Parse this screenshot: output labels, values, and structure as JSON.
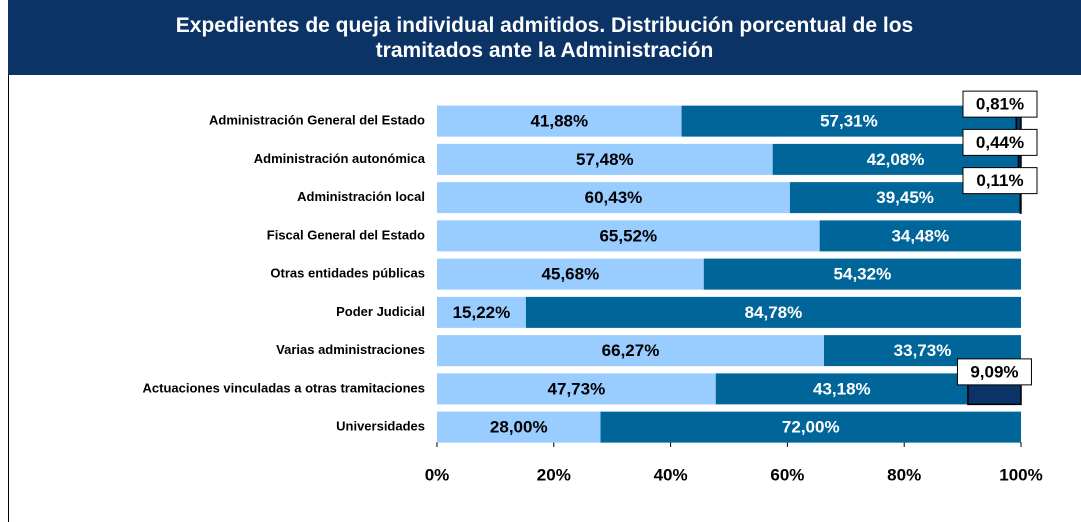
{
  "chart_data": {
    "type": "stacked-barh",
    "title": "Expedientes de queja individual admitidos. Distribución porcentual de los tramitados ante la Administración",
    "categories": [
      "Administración General del Estado",
      "Administración autonómica",
      "Administración local",
      "Fiscal General del Estado",
      "Otras entidades públicas",
      "Poder Judicial",
      "Varias administraciones",
      "Actuaciones vinculadas a otras tramitaciones",
      "Universidades"
    ],
    "series": [
      {
        "color": "#99ccff",
        "values": [
          41.88,
          57.48,
          60.43,
          65.52,
          45.68,
          15.22,
          66.27,
          47.73,
          28.0
        ],
        "value_labels": [
          "41,88%",
          "57,48%",
          "60,43%",
          "65,52%",
          "45,68%",
          "15,22%",
          "66,27%",
          "47,73%",
          "28,00%"
        ]
      },
      {
        "color": "#006699",
        "values": [
          57.31,
          42.08,
          39.45,
          34.48,
          54.32,
          84.78,
          33.73,
          43.18,
          72.0
        ],
        "value_labels": [
          "57,31%",
          "42,08%",
          "39,45%",
          "34,48%",
          "54,32%",
          "84,78%",
          "33,73%",
          "43,18%",
          "72,00%"
        ]
      },
      {
        "color": "#0b3366",
        "values": [
          0.81,
          0.44,
          0.11,
          null,
          null,
          null,
          null,
          9.09,
          null
        ],
        "value_labels": [
          "0,81%",
          "0,44%",
          "0,11%",
          null,
          null,
          null,
          null,
          "9,09%",
          null
        ]
      }
    ],
    "xlim": [
      0,
      100
    ],
    "xticks": [
      {
        "value": 0,
        "label": "0%"
      },
      {
        "value": 20,
        "label": "20%"
      },
      {
        "value": 40,
        "label": "40%"
      },
      {
        "value": 60,
        "label": "60%"
      },
      {
        "value": 80,
        "label": "80%"
      },
      {
        "value": 100,
        "label": "100%"
      }
    ]
  }
}
